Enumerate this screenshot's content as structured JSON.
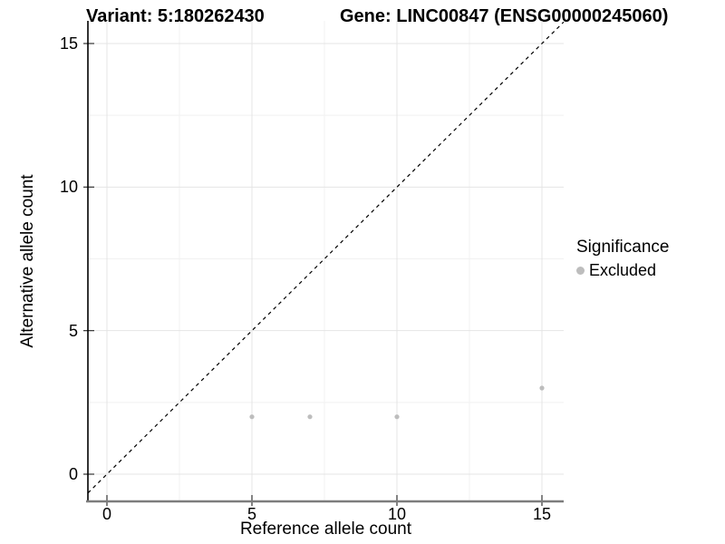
{
  "chart_data": {
    "type": "scatter",
    "title_left": "Variant: 5:180262430",
    "title_right": "Gene: LINC00847 (ENSG00000245060)",
    "xlabel": "Reference allele count",
    "ylabel": "Alternative allele count",
    "x_ticks": [
      "0",
      "5",
      "10",
      "15"
    ],
    "y_ticks": [
      "0",
      "5",
      "10",
      "15"
    ],
    "x_tick_values": [
      0,
      5,
      10,
      15
    ],
    "y_tick_values": [
      0,
      5,
      10,
      15
    ],
    "x_minor": [
      2.5,
      7.5,
      12.5
    ],
    "y_minor": [
      2.5,
      7.5,
      12.5
    ],
    "xlim": [
      -0.66,
      15.75
    ],
    "ylim": [
      -0.95,
      15.78
    ],
    "grid": "major-and-minor",
    "series": [
      {
        "name": "Excluded",
        "color": "#bdbdbd",
        "points": [
          [
            5,
            2
          ],
          [
            7,
            2
          ],
          [
            10,
            2
          ],
          [
            15,
            3
          ]
        ]
      }
    ],
    "reference_line": {
      "type": "identity",
      "intercept": 0,
      "slope": 1,
      "style": "dashed",
      "color": "#000000"
    },
    "legend": {
      "title": "Significance",
      "position": "right",
      "items": [
        {
          "label": "Excluded",
          "color": "#bdbdbd",
          "marker": "circle"
        }
      ]
    }
  },
  "colors": {
    "background": "#ffffff",
    "grid_major": "#e4e4e4",
    "grid_minor": "#f1f1f1",
    "axis_x_line": "#7d7d7d",
    "axis_y_line": "#000000",
    "tick_mark": "#333333",
    "point": "#bdbdbd",
    "text": "#000000"
  }
}
